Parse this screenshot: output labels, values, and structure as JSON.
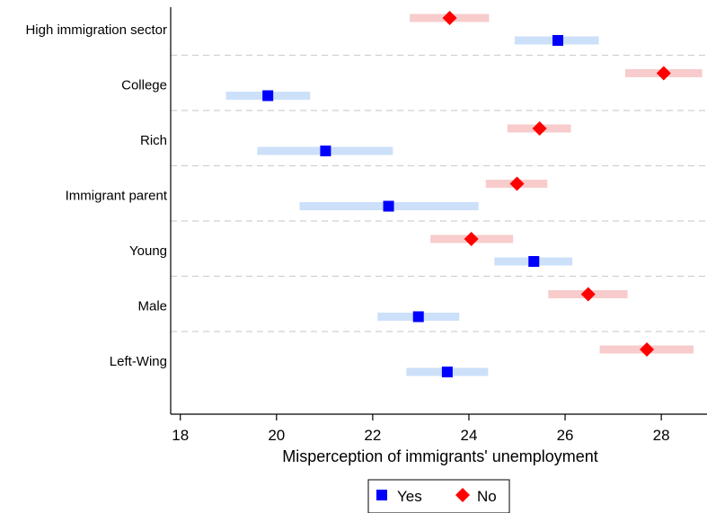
{
  "chart_data": {
    "type": "dot-ci",
    "xlabel": "Misperception of immigrants' unemployment",
    "xlim": [
      17.8,
      28.95
    ],
    "xticks": [
      18,
      20,
      22,
      24,
      26,
      28
    ],
    "categories": [
      "High immigration sector",
      "College",
      "Rich",
      "Immigrant parent",
      "Young",
      "Male",
      "Left-Wing"
    ],
    "series": [
      {
        "name": "Yes",
        "marker": "square",
        "color": "#0000ff",
        "ci_color": "#cce0fa",
        "points": [
          {
            "estimate": 25.85,
            "lo": 24.95,
            "hi": 26.7
          },
          {
            "estimate": 19.82,
            "lo": 18.95,
            "hi": 20.7
          },
          {
            "estimate": 21.02,
            "lo": 19.6,
            "hi": 22.42
          },
          {
            "estimate": 22.33,
            "lo": 20.48,
            "hi": 24.2
          },
          {
            "estimate": 25.35,
            "lo": 24.53,
            "hi": 26.15
          },
          {
            "estimate": 22.95,
            "lo": 22.1,
            "hi": 23.8
          },
          {
            "estimate": 23.55,
            "lo": 22.7,
            "hi": 24.4
          }
        ]
      },
      {
        "name": "No",
        "marker": "diamond",
        "color": "#ff0000",
        "ci_color": "#f8cccc",
        "points": [
          {
            "estimate": 23.6,
            "lo": 22.77,
            "hi": 24.42
          },
          {
            "estimate": 28.05,
            "lo": 27.25,
            "hi": 28.85
          },
          {
            "estimate": 25.47,
            "lo": 24.8,
            "hi": 26.12
          },
          {
            "estimate": 25.0,
            "lo": 24.35,
            "hi": 25.63
          },
          {
            "estimate": 24.05,
            "lo": 23.2,
            "hi": 24.92
          },
          {
            "estimate": 26.48,
            "lo": 25.65,
            "hi": 27.3
          },
          {
            "estimate": 27.7,
            "lo": 26.72,
            "hi": 28.67
          }
        ]
      }
    ],
    "legend": "bottom"
  }
}
